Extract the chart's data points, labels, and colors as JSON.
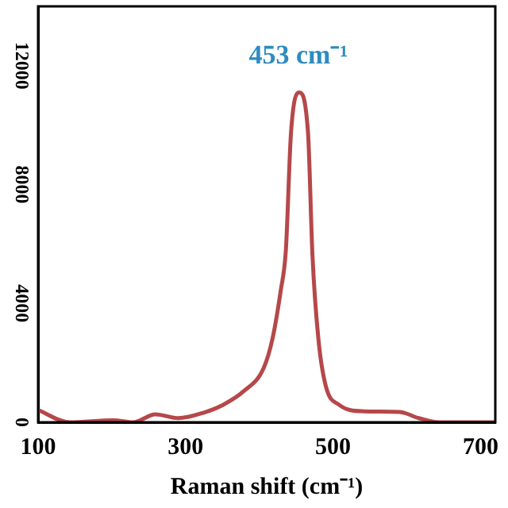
{
  "chart_data": {
    "type": "line",
    "xlabel": "Raman shift (cm⁻¹)",
    "xlim": [
      100,
      720
    ],
    "xticks": [
      100,
      300,
      500,
      700
    ],
    "ylim": [
      0,
      14000
    ],
    "yticks": [
      0,
      4000,
      8000,
      12000
    ],
    "grid": false,
    "legend": false,
    "marker": "none",
    "line_style": "solid",
    "annotations": [
      {
        "text": "453 cm⁻¹",
        "x": 453,
        "y": 11100
      }
    ],
    "series": [
      {
        "color": "#b5484a",
        "x": [
          100,
          143,
          202,
          229,
          259,
          290,
          324,
          351,
          378,
          406,
          418,
          429,
          436,
          443,
          454,
          466,
          472,
          480,
          490,
          508,
          541,
          590,
          616,
          643,
          700,
          720
        ],
        "values": [
          410,
          0,
          70,
          0,
          270,
          140,
          320,
          590,
          1030,
          1830,
          2830,
          4430,
          5800,
          9760,
          11100,
          9760,
          5650,
          2830,
          1230,
          590,
          370,
          350,
          140,
          0,
          0,
          0
        ]
      }
    ]
  }
}
